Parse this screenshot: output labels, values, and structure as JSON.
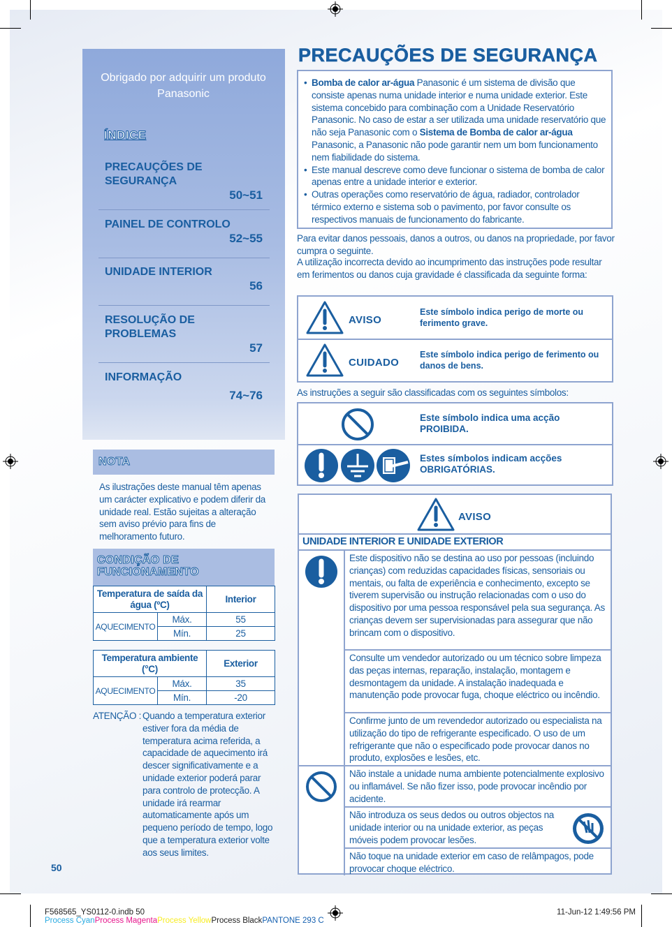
{
  "sidebar": {
    "thanks": "Obrigado por adquirir um produto Panasonic",
    "index_title": "ÍNDICE",
    "toc": [
      {
        "title": "PRECAUÇÕES DE SEGURANÇA",
        "pages": "50~51"
      },
      {
        "title": "PAINEL DE CONTROLO",
        "pages": "52~55"
      },
      {
        "title": "UNIDADE INTERIOR",
        "pages": "56"
      },
      {
        "title": "RESOLUÇÃO DE PROBLEMAS",
        "pages": "57"
      },
      {
        "title": "INFORMAÇÃO",
        "pages": "74~76"
      }
    ],
    "nota_title": "NOTA",
    "nota_text": "As ilustrações deste manual têm apenas um carácter explicativo e podem diferir da unidade real. Estão sujeitas a alteração sem aviso prévio para fins de melhoramento futuro.",
    "condicao_title": "CONDIÇÃO DE FUNCIONAMENTO",
    "table1": {
      "header": "Temperatura de saída da água (ºC)",
      "col": "Interior",
      "mode": "AQUECIMENTO",
      "rows": [
        {
          "label": "Máx.",
          "value": "55"
        },
        {
          "label": "Mín.",
          "value": "25"
        }
      ]
    },
    "table2": {
      "header": "Temperatura ambiente (°C)",
      "col": "Exterior",
      "mode": "AQUECIMENTO",
      "rows": [
        {
          "label": "Máx.",
          "value": "35"
        },
        {
          "label": "Mín.",
          "value": "-20"
        }
      ]
    },
    "atencao_label": "ATENÇÃO :",
    "atencao_text": "Quando a temperatura exterior estiver fora da média de temperatura acima referida, a capacidade de aquecimento irá descer significativamente e a unidade exterior poderá parar para controlo de protecção. A unidade irá rearmar automaticamente após um pequeno período de tempo, logo que a temperatura exterior volte aos seus limites."
  },
  "main": {
    "title": "PRECAUÇÕES DE SEGURANÇA",
    "intro_bullets": [
      {
        "b1": "Bomba de calor ar-água",
        "t1": " Panasonic é um sistema de divisão que consiste apenas numa unidade interior e numa unidade exterior. Este sistema concebido para combinação com a Unidade Reservatório Panasonic. No caso de estar a ser utilizada uma unidade reservatório que não seja Panasonic com o ",
        "b2": "Sistema de Bomba de calor ar-água",
        "t2": " Panasonic, a Panasonic não pode garantir nem um bom funcionamento nem fiabilidade do sistema."
      },
      {
        "t1": "Este manual descreve como deve funcionar o sistema de bomba de calor apenas entre a unidade interior e exterior."
      },
      {
        "t1": "Outras operações como reservatório de água, radiador, controlador térmico externo e sistema sob o pavimento, por favor consulte os respectivos manuais de funcionamento do fabricante."
      }
    ],
    "para1": "Para evitar danos pessoais, danos a outros, ou danos na propriedade, por favor cumpra o seguinte.",
    "para2": "A utilização incorrecta devido ao incumprimento das instruções pode resultar em ferimentos ou danos cuja gravidade é classificada da seguinte forma:",
    "levels": [
      {
        "label": "AVISO",
        "desc": "Este símbolo indica perigo de morte ou ferimento grave."
      },
      {
        "label": "CUIDADO",
        "desc": "Este símbolo indica perigo de ferimento ou danos de bens."
      }
    ],
    "symbols_intro": "As instruções a seguir são classificadas com os seguintes símbolos:",
    "symbols": [
      {
        "desc": "Este símbolo indica uma acção PROIBIDA."
      },
      {
        "desc": "Estes símbolos indicam acções OBRIGATÓRIAS."
      }
    ],
    "warning": {
      "label": "AVISO",
      "section": "UNIDADE INTERIOR E UNIDADE EXTERIOR",
      "mandatory": [
        "Este dispositivo não se destina ao uso por pessoas (incluindo crianças) com reduzidas capacidades físicas, sensoriais ou mentais, ou falta de experiência e conhecimento, excepto se tiverem supervisão ou instrução relacionadas com o uso do dispositivo por uma pessoa responsável pela sua segurança. As crianças devem ser supervisionadas para assegurar que não brincam com o dispositivo.",
        "Consulte um vendedor autorizado ou um técnico sobre limpeza das peças internas, reparação, instalação, montagem e desmontagem da unidade. A instalação inadequada e manutenção pode provocar fuga, choque eléctrico ou incêndio.",
        "Confirme junto de um revendedor autorizado ou especialista na utilização do tipo de refrigerante especificado. O uso de um refrigerante que não o especificado pode provocar danos no produto, explosões e lesões, etc."
      ],
      "prohibited": [
        "Não instale a unidade numa ambiente potencialmente explosivo ou inflamável. Se não fizer isso, pode provocar incêndio por acidente.",
        "Não introduza os seus dedos ou outros objectos na unidade interior ou na unidade exterior, as peças móveis podem provocar lesões.",
        "Não toque na unidade exterior em caso de relâmpagos, pode provocar choque eléctrico."
      ]
    }
  },
  "page_number": "50",
  "slug": {
    "file": "F568565_YS0112-0.indb   50",
    "date": "11-Jun-12   1:49:56 PM",
    "colors": [
      {
        "name": "Process Cyan",
        "color": "#29aae1"
      },
      {
        "name": "Process Magenta",
        "color": "#e6168c"
      },
      {
        "name": "Process Yellow",
        "color": "#f7ec22"
      },
      {
        "name": "Process Black",
        "color": "#222222"
      },
      {
        "name": "PANTONE 293 C",
        "color": "#1560b0"
      }
    ]
  },
  "colors": {
    "brand_blue": "#1a5ea0",
    "sidebar": "#a8bce3",
    "border": "#8ea4cf"
  }
}
